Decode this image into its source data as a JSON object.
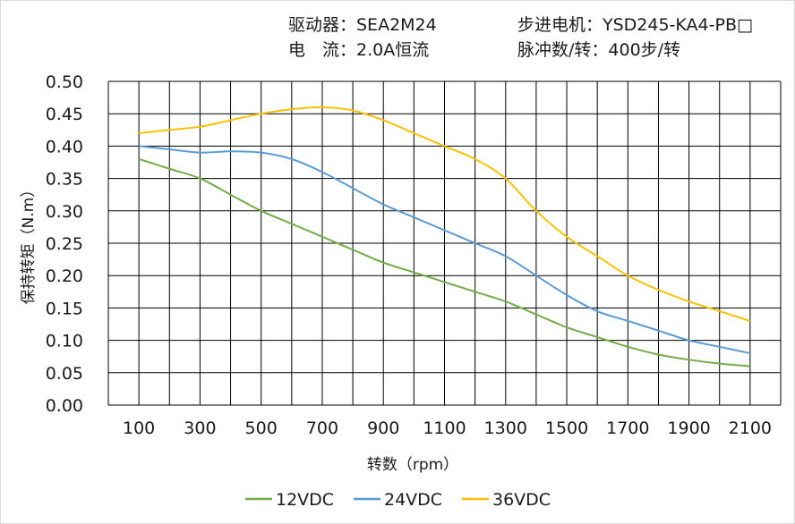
{
  "header": {
    "driver_label": "驱动器：SEA2M24",
    "current_label": "电　流：2.0A恒流",
    "motor_label": "步进电机：YSD245-KA4-PB□",
    "pulse_label": "脉冲数/转：400步/转"
  },
  "chart_data": {
    "type": "line",
    "title": "",
    "xlabel": "转数（rpm）",
    "ylabel": "保持转矩（N.m）",
    "x_ticks": [
      "100",
      "300",
      "500",
      "700",
      "900",
      "1100",
      "1300",
      "1500",
      "1700",
      "1900",
      "2100"
    ],
    "y_ticks": [
      "0.00",
      "0.05",
      "0.10",
      "0.15",
      "0.20",
      "0.25",
      "0.30",
      "0.35",
      "0.40",
      "0.45",
      "0.50"
    ],
    "xlim": [
      0,
      2200
    ],
    "ylim": [
      0,
      0.5
    ],
    "grid": true,
    "legend_position": "bottom",
    "x": [
      100,
      200,
      300,
      400,
      500,
      600,
      700,
      800,
      900,
      1000,
      1100,
      1200,
      1300,
      1400,
      1500,
      1600,
      1700,
      1800,
      1900,
      2000,
      2100
    ],
    "series": [
      {
        "name": "12VDC",
        "color": "#70ad47",
        "values": [
          0.38,
          0.365,
          0.35,
          0.325,
          0.3,
          0.28,
          0.26,
          0.24,
          0.22,
          0.205,
          0.19,
          0.175,
          0.16,
          0.14,
          0.12,
          0.105,
          0.09,
          0.078,
          0.07,
          0.064,
          0.06
        ]
      },
      {
        "name": "24VDC",
        "color": "#5b9bd5",
        "values": [
          0.4,
          0.395,
          0.39,
          0.392,
          0.39,
          0.38,
          0.36,
          0.335,
          0.31,
          0.29,
          0.27,
          0.25,
          0.23,
          0.2,
          0.17,
          0.145,
          0.13,
          0.115,
          0.1,
          0.09,
          0.08
        ]
      },
      {
        "name": "36VDC",
        "color": "#ffc000",
        "values": [
          0.42,
          0.425,
          0.43,
          0.44,
          0.45,
          0.457,
          0.46,
          0.455,
          0.44,
          0.42,
          0.4,
          0.38,
          0.35,
          0.3,
          0.26,
          0.23,
          0.2,
          0.178,
          0.16,
          0.145,
          0.13
        ]
      }
    ]
  }
}
